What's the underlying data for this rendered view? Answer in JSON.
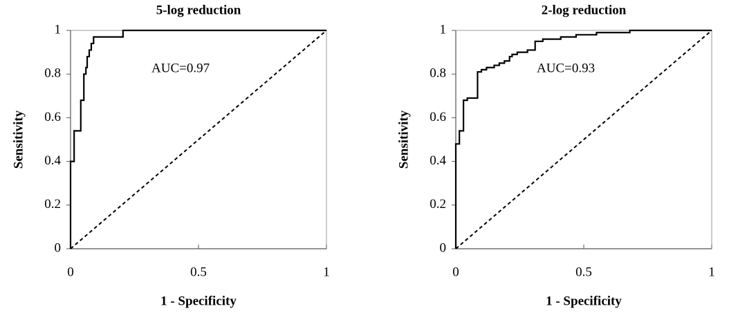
{
  "chart_data": [
    {
      "type": "line",
      "title": "5-log reduction",
      "x_label": "1 - Specificity",
      "y_label": "Sensitivity",
      "annotation": "AUC=0.97",
      "x": [
        0,
        0,
        0.014,
        0.014,
        0.04,
        0.04,
        0.052,
        0.052,
        0.06,
        0.06,
        0.065,
        0.065,
        0.073,
        0.073,
        0.081,
        0.081,
        0.09,
        0.09,
        0.205,
        0.205,
        1
      ],
      "values": [
        0,
        0.4,
        0.4,
        0.54,
        0.54,
        0.68,
        0.68,
        0.8,
        0.8,
        0.83,
        0.83,
        0.88,
        0.88,
        0.91,
        0.91,
        0.94,
        0.94,
        0.97,
        0.97,
        1,
        1
      ],
      "color": "#000000",
      "xlim": [
        0,
        1
      ],
      "ylim": [
        0,
        1
      ],
      "xticks": [
        0,
        0.5,
        1
      ],
      "yticks": [
        0,
        0.2,
        0.4,
        0.6,
        0.8,
        1
      ]
    },
    {
      "type": "line",
      "title": "2-log reduction",
      "x_label": "1 - Specificity",
      "y_label": "Sensitivity",
      "annotation": "AUC=0.93",
      "x": [
        0,
        0,
        0.014,
        0.014,
        0.03,
        0.03,
        0.045,
        0.045,
        0.085,
        0.085,
        0.1,
        0.1,
        0.12,
        0.12,
        0.15,
        0.15,
        0.17,
        0.17,
        0.19,
        0.19,
        0.21,
        0.21,
        0.22,
        0.22,
        0.24,
        0.24,
        0.28,
        0.28,
        0.31,
        0.31,
        0.34,
        0.34,
        0.41,
        0.41,
        0.47,
        0.47,
        0.55,
        0.55,
        0.68,
        0.68,
        1
      ],
      "values": [
        0,
        0.48,
        0.48,
        0.54,
        0.54,
        0.68,
        0.68,
        0.69,
        0.69,
        0.81,
        0.81,
        0.82,
        0.82,
        0.83,
        0.83,
        0.84,
        0.84,
        0.85,
        0.85,
        0.86,
        0.86,
        0.88,
        0.88,
        0.89,
        0.89,
        0.9,
        0.9,
        0.91,
        0.91,
        0.95,
        0.95,
        0.96,
        0.96,
        0.97,
        0.97,
        0.98,
        0.98,
        0.99,
        0.99,
        1,
        1
      ],
      "color": "#000000",
      "xlim": [
        0,
        1
      ],
      "ylim": [
        0,
        1
      ],
      "xticks": [
        0,
        0.5,
        1
      ],
      "yticks": [
        0,
        0.2,
        0.4,
        0.6,
        0.8,
        1
      ]
    }
  ]
}
